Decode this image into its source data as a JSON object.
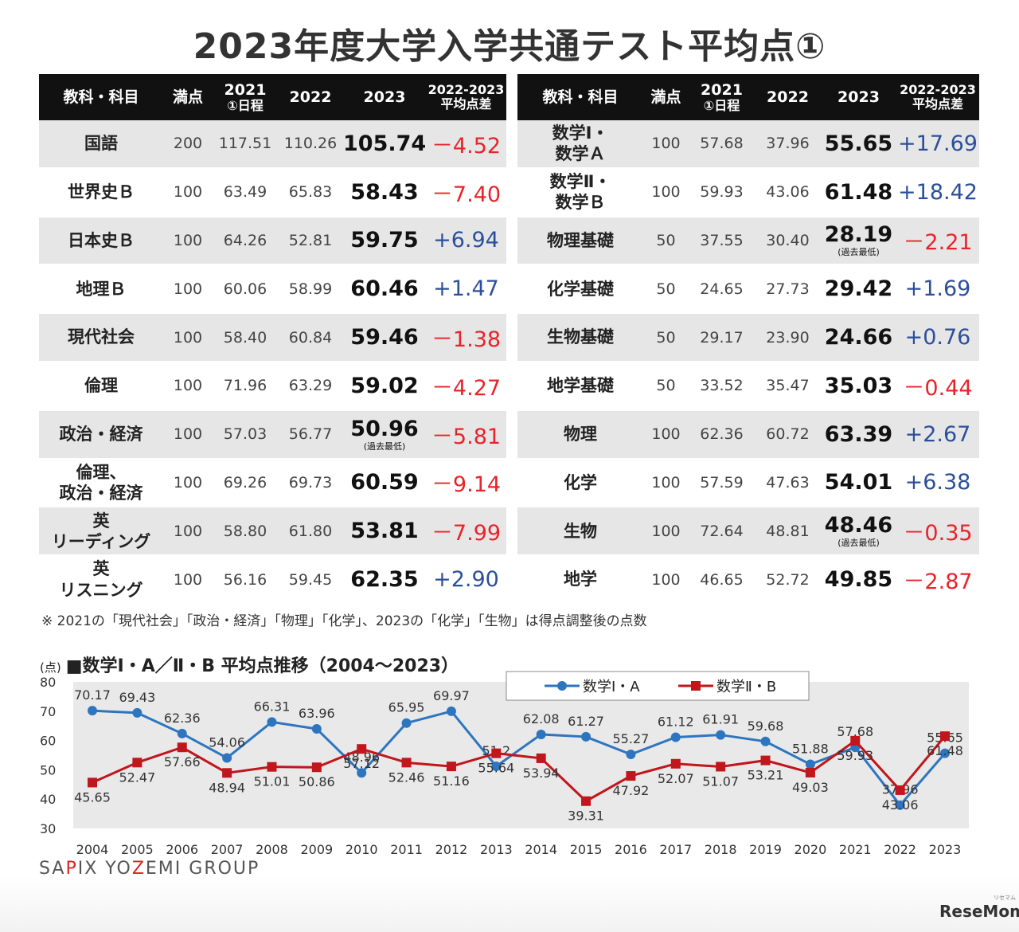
{
  "title": "2023年度大学入学共通テスト平均点①",
  "table_headers": {
    "subject": "教科・科目",
    "full": "満点",
    "y2021_year": "2021",
    "y2021_sub": "①日程",
    "y2022": "2022",
    "y2023": "2023",
    "diff_top": "2022-2023",
    "diff_bottom": "平均点差"
  },
  "left_rows": [
    {
      "subject": "国語",
      "full": "200",
      "y2021": "117.51",
      "y2022": "110.26",
      "y2023": "105.74",
      "note": "",
      "diff": "－4.52",
      "sign": "neg"
    },
    {
      "subject": "世界史Ｂ",
      "full": "100",
      "y2021": "63.49",
      "y2022": "65.83",
      "y2023": "58.43",
      "note": "",
      "diff": "－7.40",
      "sign": "neg"
    },
    {
      "subject": "日本史Ｂ",
      "full": "100",
      "y2021": "64.26",
      "y2022": "52.81",
      "y2023": "59.75",
      "note": "",
      "diff": "+6.94",
      "sign": "pos"
    },
    {
      "subject": "地理Ｂ",
      "full": "100",
      "y2021": "60.06",
      "y2022": "58.99",
      "y2023": "60.46",
      "note": "",
      "diff": "+1.47",
      "sign": "pos"
    },
    {
      "subject": "現代社会",
      "full": "100",
      "y2021": "58.40",
      "y2022": "60.84",
      "y2023": "59.46",
      "note": "",
      "diff": "－1.38",
      "sign": "neg"
    },
    {
      "subject": "倫理",
      "full": "100",
      "y2021": "71.96",
      "y2022": "63.29",
      "y2023": "59.02",
      "note": "",
      "diff": "－4.27",
      "sign": "neg"
    },
    {
      "subject": "政治・経済",
      "full": "100",
      "y2021": "57.03",
      "y2022": "56.77",
      "y2023": "50.96",
      "note": "(過去最低)",
      "diff": "－5.81",
      "sign": "neg"
    },
    {
      "subject": "倫理、\n政治・経済",
      "full": "100",
      "y2021": "69.26",
      "y2022": "69.73",
      "y2023": "60.59",
      "note": "",
      "diff": "－9.14",
      "sign": "neg"
    },
    {
      "subject": "英\nリーディング",
      "full": "100",
      "y2021": "58.80",
      "y2022": "61.80",
      "y2023": "53.81",
      "note": "",
      "diff": "－7.99",
      "sign": "neg"
    },
    {
      "subject": "英\nリスニング",
      "full": "100",
      "y2021": "56.16",
      "y2022": "59.45",
      "y2023": "62.35",
      "note": "",
      "diff": "+2.90",
      "sign": "pos"
    }
  ],
  "right_rows": [
    {
      "subject": "数学Ⅰ・\n数学Ａ",
      "full": "100",
      "y2021": "57.68",
      "y2022": "37.96",
      "y2023": "55.65",
      "note": "",
      "diff": "+17.69",
      "sign": "pos"
    },
    {
      "subject": "数学Ⅱ・\n数学Ｂ",
      "full": "100",
      "y2021": "59.93",
      "y2022": "43.06",
      "y2023": "61.48",
      "note": "",
      "diff": "+18.42",
      "sign": "pos"
    },
    {
      "subject": "物理基礎",
      "full": "50",
      "y2021": "37.55",
      "y2022": "30.40",
      "y2023": "28.19",
      "note": "(過去最低)",
      "diff": "－2.21",
      "sign": "neg"
    },
    {
      "subject": "化学基礎",
      "full": "50",
      "y2021": "24.65",
      "y2022": "27.73",
      "y2023": "29.42",
      "note": "",
      "diff": "+1.69",
      "sign": "pos"
    },
    {
      "subject": "生物基礎",
      "full": "50",
      "y2021": "29.17",
      "y2022": "23.90",
      "y2023": "24.66",
      "note": "",
      "diff": "+0.76",
      "sign": "pos"
    },
    {
      "subject": "地学基礎",
      "full": "50",
      "y2021": "33.52",
      "y2022": "35.47",
      "y2023": "35.03",
      "note": "",
      "diff": "－0.44",
      "sign": "neg"
    },
    {
      "subject": "物理",
      "full": "100",
      "y2021": "62.36",
      "y2022": "60.72",
      "y2023": "63.39",
      "note": "",
      "diff": "+2.67",
      "sign": "pos"
    },
    {
      "subject": "化学",
      "full": "100",
      "y2021": "57.59",
      "y2022": "47.63",
      "y2023": "54.01",
      "note": "",
      "diff": "+6.38",
      "sign": "pos"
    },
    {
      "subject": "生物",
      "full": "100",
      "y2021": "72.64",
      "y2022": "48.81",
      "y2023": "48.46",
      "note": "(過去最低)",
      "diff": "－0.35",
      "sign": "neg"
    },
    {
      "subject": "地学",
      "full": "100",
      "y2021": "46.65",
      "y2022": "52.72",
      "y2023": "49.85",
      "note": "",
      "diff": "－2.87",
      "sign": "neg"
    }
  ],
  "footnote": "※ 2021の「現代社会」「政治・経済」「物理」「化学」、2023の「化学」「生物」は得点調整後の点数",
  "chart_heading": {
    "unit": "(点)",
    "title": "■数学Ⅰ・A／Ⅱ・B 平均点推移（2004～2023）"
  },
  "colors": {
    "math1": "#2e75c0",
    "math2": "#c0161c",
    "neg": "#e8242a",
    "pos": "#2c4f9b",
    "header_bg": "#111111",
    "row_shade": "#e6e6e6",
    "chart_bg": "#e9e9e9"
  },
  "chart_data": {
    "type": "line",
    "title": "■数学Ⅰ・A／Ⅱ・B 平均点推移（2004～2023）",
    "ylabel": "(点)",
    "xlabel": "",
    "ylim": [
      30,
      80
    ],
    "yticks": [
      30,
      40,
      50,
      60,
      70,
      80
    ],
    "grid": false,
    "legend": "top-center",
    "categories": [
      "2004",
      "2005",
      "2006",
      "2007",
      "2008",
      "2009",
      "2010",
      "2011",
      "2012",
      "2013",
      "2014",
      "2015",
      "2016",
      "2017",
      "2018",
      "2019",
      "2020",
      "2021",
      "2022",
      "2023"
    ],
    "series": [
      {
        "name": "数学Ⅰ・A",
        "marker": "circle",
        "label_pos": "above",
        "values": [
          70.17,
          69.43,
          62.36,
          54.06,
          66.31,
          63.96,
          48.96,
          65.95,
          69.97,
          51.2,
          62.08,
          61.27,
          55.27,
          61.12,
          61.91,
          59.68,
          51.88,
          57.68,
          37.96,
          55.65
        ],
        "labels": [
          "70.17",
          "69.43",
          "62.36",
          "54.06",
          "66.31",
          "63.96",
          "48.96",
          "65.95",
          "69.97",
          "51.2",
          "62.08",
          "61.27",
          "55.27",
          "61.12",
          "61.91",
          "59.68",
          "51.88",
          "57.68",
          "37.96",
          "55.65"
        ]
      },
      {
        "name": "数学Ⅱ・B",
        "marker": "square",
        "label_pos": "below",
        "values": [
          45.65,
          52.47,
          57.66,
          48.94,
          51.01,
          50.86,
          57.12,
          52.46,
          51.16,
          55.64,
          53.94,
          39.31,
          47.92,
          52.07,
          51.07,
          53.21,
          49.03,
          59.93,
          43.06,
          61.48
        ],
        "labels": [
          "45.65",
          "52.47",
          "57.66",
          "48.94",
          "51.01",
          "50.86",
          "57.12",
          "52.46",
          "51.16",
          "55.64",
          "53.94",
          "39.31",
          "47.92",
          "52.07",
          "51.07",
          "53.21",
          "49.03",
          "59.93",
          "43.06",
          "61.48"
        ]
      }
    ]
  },
  "brand": {
    "pre": "SA",
    "p": "P",
    "mid": "IX YO",
    "z": "Z",
    "post": "EMI GROUP"
  },
  "logo": {
    "main": "ReseMom",
    "small": "リセマム"
  }
}
